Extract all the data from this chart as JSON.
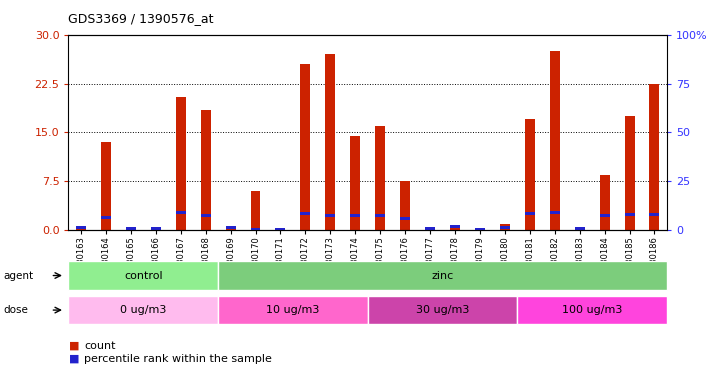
{
  "title": "GDS3369 / 1390576_at",
  "samples": [
    "GSM280163",
    "GSM280164",
    "GSM280165",
    "GSM280166",
    "GSM280167",
    "GSM280168",
    "GSM280169",
    "GSM280170",
    "GSM280171",
    "GSM280172",
    "GSM280173",
    "GSM280174",
    "GSM280175",
    "GSM280176",
    "GSM280177",
    "GSM280178",
    "GSM280179",
    "GSM280180",
    "GSM280181",
    "GSM280182",
    "GSM280183",
    "GSM280184",
    "GSM280185",
    "GSM280186"
  ],
  "count_values": [
    0.3,
    13.5,
    0.3,
    0.3,
    20.5,
    18.5,
    0.5,
    6.0,
    0.4,
    25.5,
    27.0,
    14.5,
    16.0,
    7.5,
    0.3,
    0.8,
    0.4,
    1.0,
    17.0,
    27.5,
    0.3,
    8.5,
    17.5,
    22.5
  ],
  "percentile_values": [
    1.5,
    6.5,
    1.0,
    1.0,
    9.0,
    7.5,
    1.5,
    0.5,
    0.4,
    8.5,
    7.5,
    7.5,
    7.5,
    6.0,
    1.0,
    2.0,
    0.5,
    1.5,
    8.5,
    9.0,
    1.0,
    7.5,
    8.0,
    8.0
  ],
  "left_ylim": [
    0,
    30
  ],
  "right_ylim": [
    0,
    100
  ],
  "left_yticks": [
    0,
    7.5,
    15,
    22.5,
    30
  ],
  "right_yticks": [
    0,
    25,
    50,
    75,
    100
  ],
  "agent_groups": [
    {
      "label": "control",
      "start": 0,
      "end": 6,
      "color": "#90EE90"
    },
    {
      "label": "zinc",
      "start": 6,
      "end": 24,
      "color": "#7CCD7C"
    }
  ],
  "dose_groups": [
    {
      "label": "0 ug/m3",
      "start": 0,
      "end": 6,
      "color": "#FFBBEE"
    },
    {
      "label": "10 ug/m3",
      "start": 6,
      "end": 12,
      "color": "#FF66CC"
    },
    {
      "label": "30 ug/m3",
      "start": 12,
      "end": 18,
      "color": "#CC44AA"
    },
    {
      "label": "100 ug/m3",
      "start": 18,
      "end": 24,
      "color": "#FF44DD"
    }
  ],
  "bar_color": "#CC2200",
  "percentile_color": "#2222CC",
  "background_color": "#FFFFFF",
  "legend_count_label": "count",
  "legend_percentile_label": "percentile rank within the sample",
  "right_axis_color": "#3333FF",
  "left_axis_color": "#CC2200",
  "bar_width": 0.4,
  "figsize": [
    7.21,
    3.84
  ],
  "dpi": 100
}
